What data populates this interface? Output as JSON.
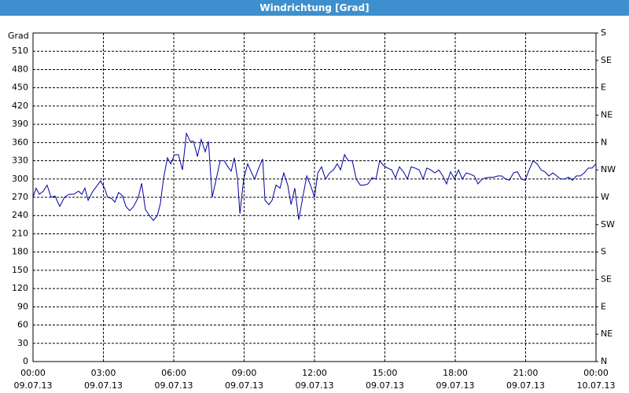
{
  "chart_data": {
    "type": "line",
    "title": "Windrichtung [Grad]",
    "y_label": "Grad",
    "xlim": [
      0,
      24
    ],
    "ylim": [
      0,
      540
    ],
    "y2lim": [
      0,
      540
    ],
    "grid": true,
    "xticks": [
      {
        "value": 0,
        "label": "00:00"
      },
      {
        "value": 3,
        "label": "03:00"
      },
      {
        "value": 6,
        "label": "06:00"
      },
      {
        "value": 9,
        "label": "09:00"
      },
      {
        "value": 12,
        "label": "12:00"
      },
      {
        "value": 15,
        "label": "15:00"
      },
      {
        "value": 18,
        "label": "18:00"
      },
      {
        "value": 21,
        "label": "21:00"
      },
      {
        "value": 24,
        "label": "00:00"
      }
    ],
    "xtick_dates": [
      "09.07.13",
      "09.07.13",
      "09.07.13",
      "09.07.13",
      "09.07.13",
      "09.07.13",
      "09.07.13",
      "09.07.13",
      "10.07.13"
    ],
    "yticks": [
      0,
      30,
      60,
      90,
      120,
      150,
      180,
      210,
      240,
      270,
      300,
      330,
      360,
      390,
      420,
      450,
      480,
      510
    ],
    "y2ticks": [
      {
        "value": 0,
        "label": "N"
      },
      {
        "value": 45,
        "label": "NE"
      },
      {
        "value": 90,
        "label": "E"
      },
      {
        "value": 135,
        "label": "SE"
      },
      {
        "value": 180,
        "label": "S"
      },
      {
        "value": 225,
        "label": "SW"
      },
      {
        "value": 270,
        "label": "W"
      },
      {
        "value": 315,
        "label": "NW"
      },
      {
        "value": 360,
        "label": "N"
      },
      {
        "value": 405,
        "label": "NE"
      },
      {
        "value": 450,
        "label": "E"
      },
      {
        "value": 495,
        "label": "SE"
      },
      {
        "value": 540,
        "label": "S"
      }
    ],
    "x": [
      0,
      0.13,
      0.27,
      0.44,
      0.6,
      0.77,
      0.94,
      1.14,
      1.34,
      1.54,
      1.74,
      1.94,
      2.08,
      2.21,
      2.35,
      2.55,
      2.75,
      2.88,
      3.05,
      3.18,
      3.35,
      3.49,
      3.65,
      3.82,
      3.96,
      4.12,
      4.29,
      4.49,
      4.63,
      4.79,
      4.96,
      5.13,
      5.3,
      5.43,
      5.56,
      5.73,
      5.87,
      6.03,
      6.2,
      6.37,
      6.54,
      6.7,
      6.84,
      7.01,
      7.17,
      7.34,
      7.48,
      7.64,
      7.98,
      8.15,
      8.31,
      8.45,
      8.58,
      8.72,
      8.82,
      8.98,
      9.15,
      9.32,
      9.45,
      9.62,
      9.79,
      9.89,
      10.06,
      10.19,
      10.36,
      10.53,
      10.69,
      10.86,
      11.0,
      11.16,
      11.33,
      11.5,
      11.67,
      11.83,
      12.0,
      12.14,
      12.3,
      12.47,
      12.64,
      12.81,
      12.97,
      13.11,
      13.28,
      13.44,
      13.61,
      13.78,
      13.95,
      14.11,
      14.28,
      14.45,
      14.62,
      14.78,
      14.95,
      15.12,
      15.29,
      15.45,
      15.62,
      15.79,
      15.96,
      16.12,
      16.29,
      16.46,
      16.63,
      16.79,
      16.96,
      17.13,
      17.3,
      17.47,
      17.63,
      17.8,
      17.97,
      18.14,
      18.3,
      18.47,
      18.64,
      18.81,
      18.97,
      19.14,
      19.31,
      19.48,
      19.64,
      19.81,
      19.98,
      20.15,
      20.31,
      20.48,
      20.65,
      20.82,
      20.98,
      21.15,
      21.32,
      21.49,
      21.66,
      21.82,
      21.99,
      22.16,
      22.33,
      22.49,
      22.66,
      22.83,
      23.0,
      23.16,
      23.33,
      23.5,
      23.67,
      23.83,
      24.0
    ],
    "series": [
      {
        "color": "#0000a0",
        "values": [
          270,
          285,
          275,
          280,
          290,
          270,
          272,
          255,
          270,
          275,
          275,
          280,
          275,
          285,
          265,
          280,
          290,
          297,
          285,
          270,
          268,
          262,
          278,
          272,
          255,
          248,
          255,
          270,
          293,
          250,
          240,
          232,
          240,
          260,
          300,
          335,
          325,
          340,
          340,
          315,
          375,
          362,
          362,
          337,
          365,
          345,
          362,
          270,
          330,
          330,
          320,
          313,
          335,
          300,
          243,
          300,
          325,
          310,
          300,
          318,
          333,
          265,
          258,
          265,
          290,
          285,
          310,
          290,
          258,
          285,
          233,
          270,
          305,
          290,
          270,
          310,
          320,
          300,
          310,
          315,
          325,
          315,
          340,
          330,
          330,
          300,
          290,
          290,
          292,
          302,
          300,
          330,
          322,
          318,
          315,
          302,
          320,
          312,
          300,
          320,
          318,
          315,
          300,
          318,
          315,
          310,
          315,
          305,
          292,
          312,
          300,
          315,
          300,
          310,
          308,
          305,
          292,
          300,
          302,
          303,
          303,
          305,
          305,
          300,
          298,
          310,
          312,
          300,
          298,
          315,
          330,
          325,
          315,
          312,
          305,
          310,
          305,
          300,
          300,
          303,
          298,
          305,
          305,
          310,
          318,
          318,
          325
        ]
      }
    ]
  }
}
